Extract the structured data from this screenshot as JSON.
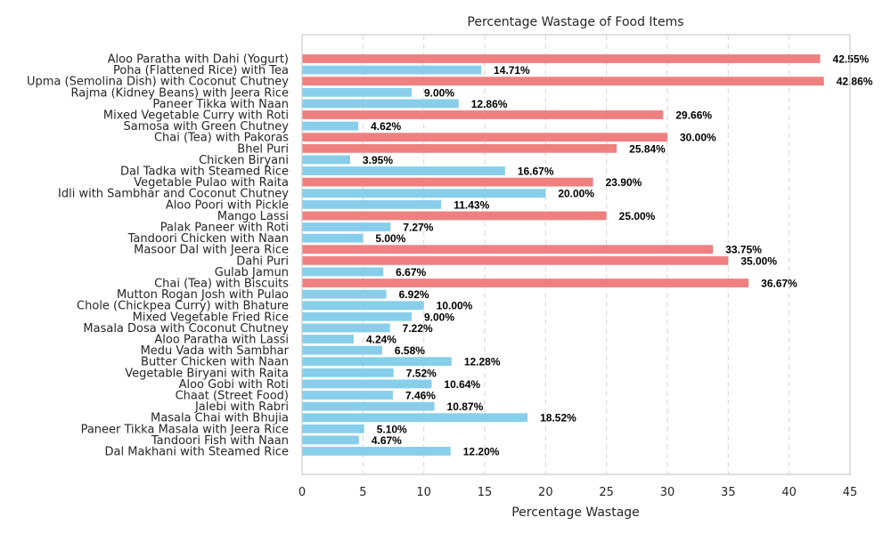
{
  "colors": {
    "high_wastage": "#f08080",
    "normal_wastage": "#87ceeb",
    "grid": "#dddddd",
    "frame": "#cccccc"
  },
  "chart_data": {
    "type": "bar",
    "orientation": "horizontal",
    "title": "Percentage Wastage of Food Items",
    "xlabel": "Percentage Wastage",
    "ylabel": "",
    "xlim": [
      0,
      45
    ],
    "xticks": [
      "0",
      "5",
      "10",
      "15",
      "20",
      "25",
      "30",
      "35",
      "40",
      "45"
    ],
    "grid": "vertical dashed",
    "highlight_threshold": 20,
    "categories": [
      "Aloo Paratha with Dahi (Yogurt)",
      "Poha (Flattened Rice) with Tea",
      "Upma (Semolina Dish) with Coconut Chutney",
      "Rajma (Kidney Beans) with Jeera Rice",
      "Paneer Tikka with Naan",
      "Mixed Vegetable Curry with Roti",
      "Samosa with Green Chutney",
      "Chai (Tea) with Pakoras",
      "Bhel Puri",
      "Chicken Biryani",
      "Dal Tadka with Steamed Rice",
      "Vegetable Pulao with Raita",
      "Idli with Sambhar and Coconut Chutney",
      "Aloo Poori with Pickle",
      "Mango Lassi",
      "Palak Paneer with Roti",
      "Tandoori Chicken with Naan",
      "Masoor Dal with Jeera Rice",
      "Dahi Puri",
      "Gulab Jamun",
      "Chai (Tea) with Biscuits",
      "Mutton Rogan Josh with Pulao",
      "Chole (Chickpea Curry) with Bhature",
      "Mixed Vegetable Fried Rice",
      "Masala Dosa with Coconut Chutney",
      "Aloo Paratha with Lassi",
      "Medu Vada with Sambhar",
      "Butter Chicken with Naan",
      "Vegetable Biryani with Raita",
      "Aloo Gobi with Roti",
      "Chaat (Street Food)",
      "Jalebi with Rabri",
      "Masala Chai with Bhujia",
      "Paneer Tikka Masala with Jeera Rice",
      "Tandoori Fish with Naan",
      "Dal Makhani with Steamed Rice"
    ],
    "values": [
      42.55,
      14.71,
      42.86,
      9.0,
      12.86,
      29.66,
      4.62,
      30.0,
      25.84,
      3.95,
      16.67,
      23.9,
      20.0,
      11.43,
      25.0,
      7.27,
      5.0,
      33.75,
      35.0,
      6.67,
      36.67,
      6.92,
      10.0,
      9.0,
      7.22,
      4.24,
      6.58,
      12.28,
      7.52,
      10.64,
      7.46,
      10.87,
      18.52,
      5.1,
      4.67,
      12.2
    ],
    "value_labels": [
      "42.55%",
      "14.71%",
      "42.86%",
      "9.00%",
      "12.86%",
      "29.66%",
      "4.62%",
      "30.00%",
      "25.84%",
      "3.95%",
      "16.67%",
      "23.90%",
      "20.00%",
      "11.43%",
      "25.00%",
      "7.27%",
      "5.00%",
      "33.75%",
      "35.00%",
      "6.67%",
      "36.67%",
      "6.92%",
      "10.00%",
      "9.00%",
      "7.22%",
      "4.24%",
      "6.58%",
      "12.28%",
      "7.52%",
      "10.64%",
      "7.46%",
      "10.87%",
      "18.52%",
      "5.10%",
      "4.67%",
      "12.20%"
    ],
    "highlighted": [
      true,
      false,
      true,
      false,
      false,
      true,
      false,
      true,
      true,
      false,
      false,
      true,
      false,
      false,
      true,
      false,
      false,
      true,
      true,
      false,
      true,
      false,
      false,
      false,
      false,
      false,
      false,
      false,
      false,
      false,
      false,
      false,
      false,
      false,
      false,
      false
    ]
  }
}
